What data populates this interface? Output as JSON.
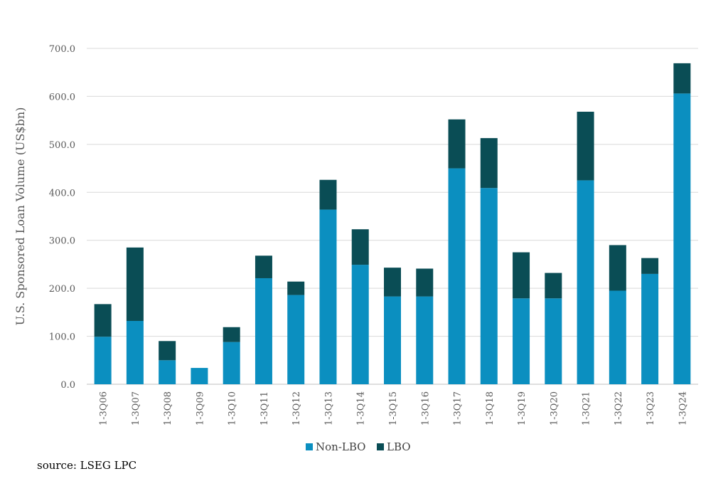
{
  "chart_data": {
    "type": "bar",
    "stacked": true,
    "categories": [
      "1-3Q06",
      "1-3Q07",
      "1-3Q08",
      "1-3Q09",
      "1-3Q10",
      "1-3Q11",
      "1-3Q12",
      "1-3Q13",
      "1-3Q14",
      "1-3Q15",
      "1-3Q16",
      "1-3Q17",
      "1-3Q18",
      "1-3Q19",
      "1-3Q20",
      "1-3Q21",
      "1-3Q22",
      "1-3Q23",
      "1-3Q24"
    ],
    "series": [
      {
        "name": "Non-LBO",
        "color": "#0b8fc0",
        "values": [
          99,
          132,
          50,
          34,
          88,
          221,
          186,
          364,
          249,
          183,
          183,
          450,
          409,
          179,
          179,
          425,
          195,
          230,
          606
        ]
      },
      {
        "name": "LBO",
        "color": "#0a4d55",
        "values": [
          68,
          153,
          40,
          0,
          31,
          47,
          28,
          62,
          74,
          60,
          58,
          102,
          104,
          96,
          53,
          143,
          95,
          33,
          63
        ]
      }
    ],
    "xlabel": "",
    "ylabel": "U.S. Sponsored Loan Volume (US$bn)",
    "ylim": [
      0,
      700
    ],
    "yticks": [
      "0.0",
      "100.0",
      "200.0",
      "300.0",
      "400.0",
      "500.0",
      "600.0",
      "700.0"
    ],
    "grid": true,
    "legend_position": "bottom"
  },
  "source_note": "source:  LSEG LPC"
}
